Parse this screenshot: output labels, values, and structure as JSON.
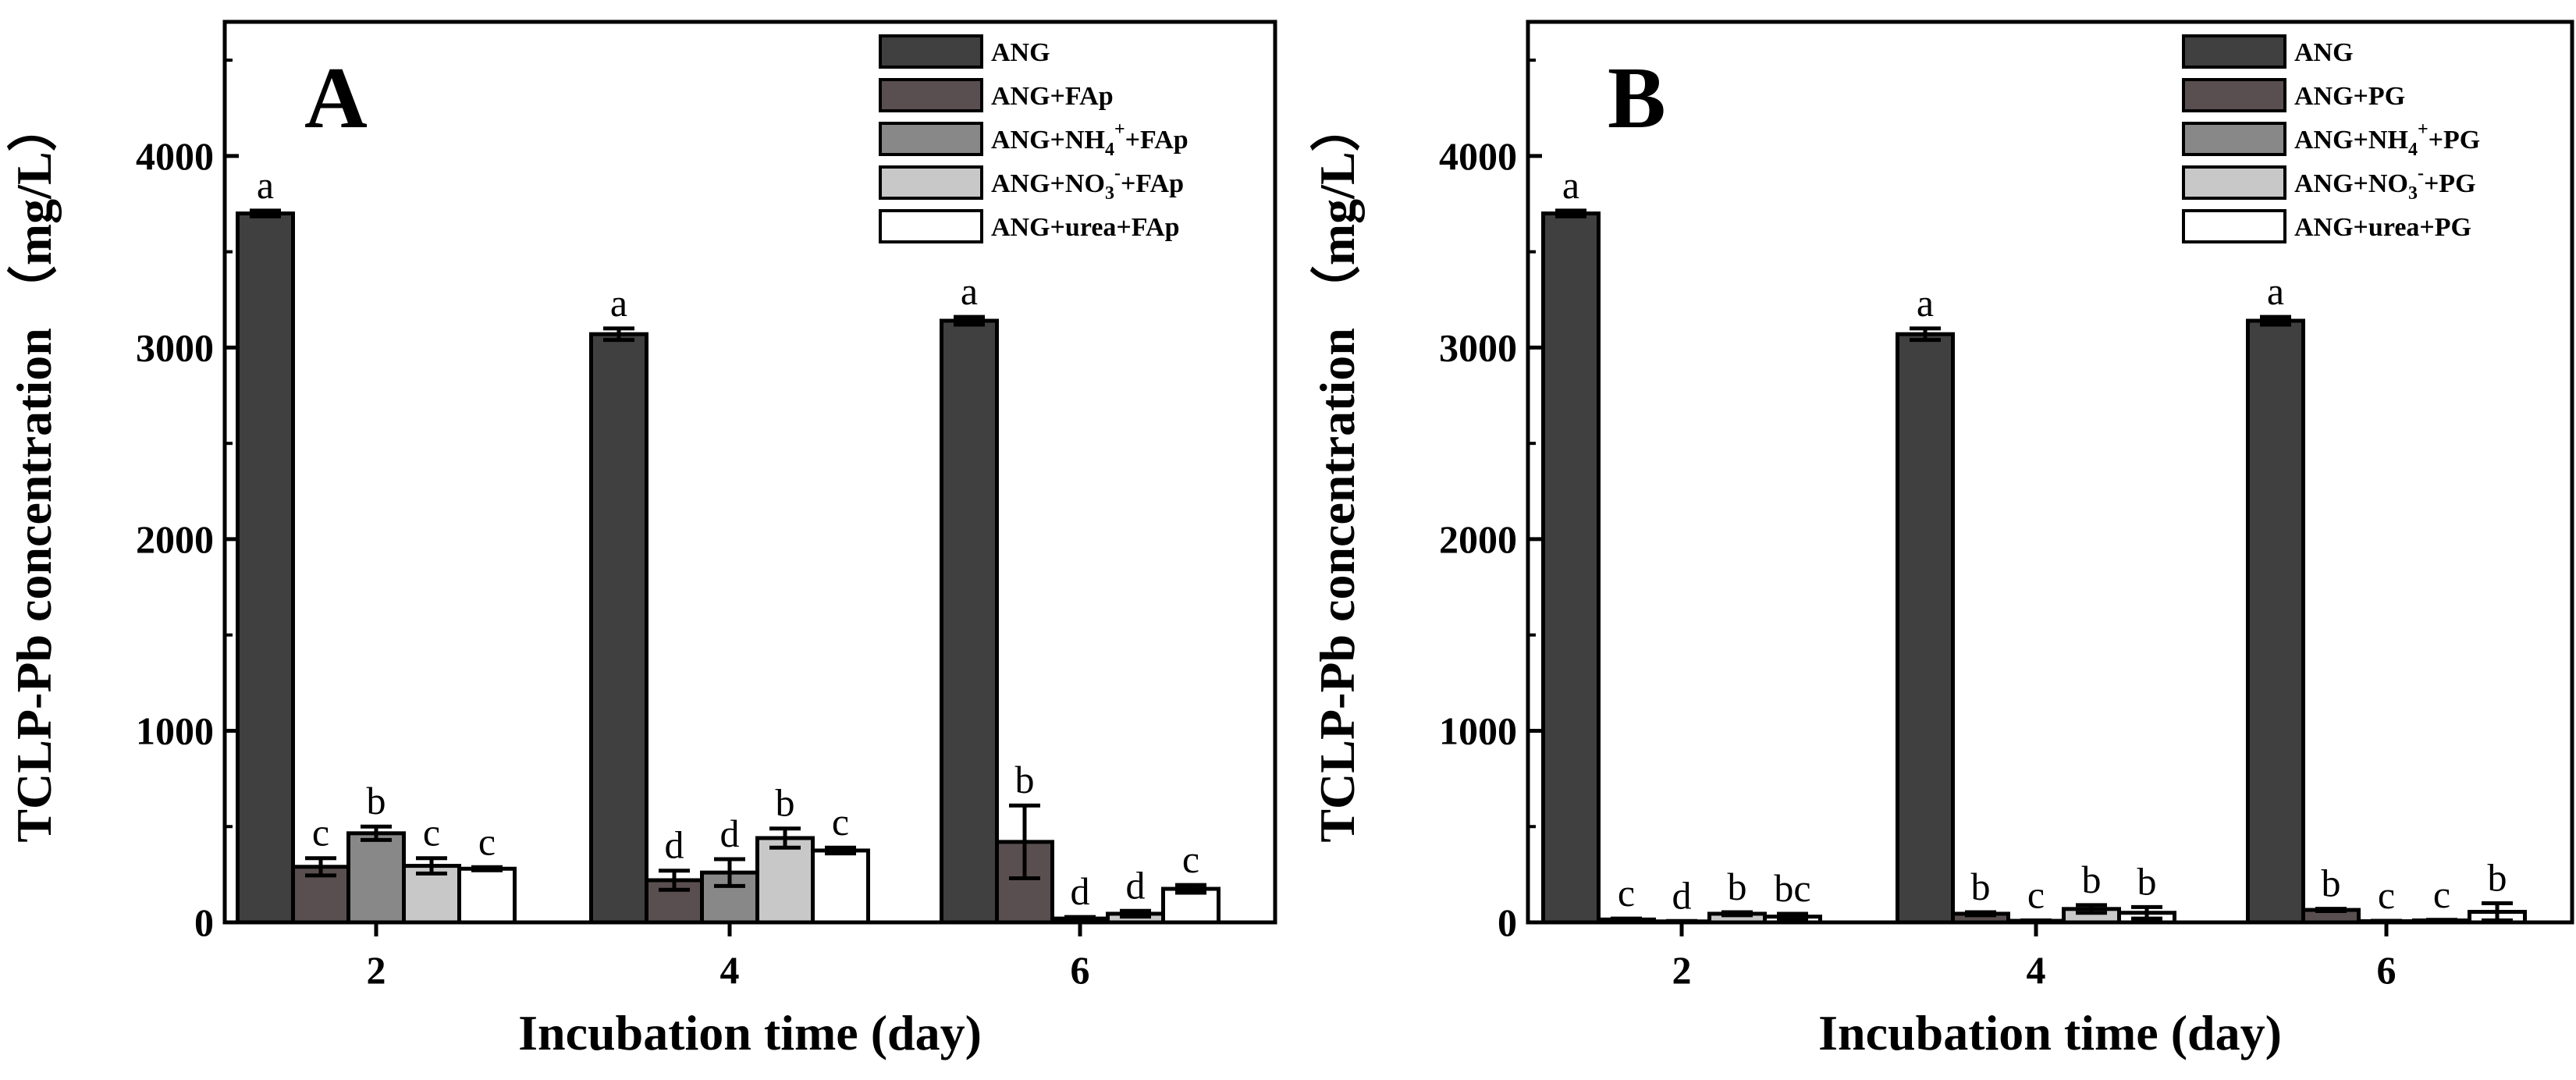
{
  "colors": {
    "ANG": "#404040",
    "ANG+X": "#5a4f50",
    "ANG+NH4+X": "#888888",
    "ANG+NO3+X": "#c8c8c8",
    "ANG+urea+X": "#ffffff"
  },
  "chart_data": [
    {
      "type": "bar",
      "panel_label": "A",
      "xlabel": "Incubation time (day)",
      "ylabel": "TCLP-Pb concentration （mg/L）",
      "ylim": [
        0,
        4700
      ],
      "yticks": [
        "0",
        "1000",
        "2000",
        "3000",
        "4000"
      ],
      "categories": [
        "2",
        "4",
        "6"
      ],
      "legend_position": "top-right",
      "series": [
        {
          "name": "ANG",
          "sub": "",
          "sup": "",
          "suffix": "",
          "values": [
            3700,
            3070,
            3140
          ],
          "errors": [
            15,
            30,
            20
          ],
          "labels": [
            "a",
            "a",
            "a"
          ]
        },
        {
          "name": "ANG+FAp",
          "sub": "",
          "sup": "",
          "suffix": "",
          "values": [
            290,
            220,
            420
          ],
          "errors": [
            45,
            50,
            190
          ],
          "labels": [
            "c",
            "d",
            "b"
          ]
        },
        {
          "name": "ANG+NH",
          "sub": "4",
          "sup": "+",
          "suffix": "+FAp",
          "values": [
            465,
            260,
            20
          ],
          "errors": [
            35,
            70,
            8
          ],
          "labels": [
            "b",
            "d",
            "d"
          ]
        },
        {
          "name": "ANG+NO",
          "sub": "3",
          "sup": "-",
          "suffix": "+FAp",
          "values": [
            295,
            440,
            45
          ],
          "errors": [
            40,
            50,
            15
          ],
          "labels": [
            "c",
            "b",
            "d"
          ]
        },
        {
          "name": "ANG+urea+FAp",
          "sub": "",
          "sup": "",
          "suffix": "",
          "values": [
            280,
            375,
            175
          ],
          "errors": [
            8,
            15,
            20
          ],
          "labels": [
            "c",
            "c",
            "c"
          ]
        }
      ]
    },
    {
      "type": "bar",
      "panel_label": "B",
      "xlabel": "Incubation time (day)",
      "ylabel": "TCLP-Pb concentration （mg/L）",
      "ylim": [
        0,
        4700
      ],
      "yticks": [
        "0",
        "1000",
        "2000",
        "3000",
        "4000"
      ],
      "categories": [
        "2",
        "4",
        "6"
      ],
      "legend_position": "top-right",
      "series": [
        {
          "name": "ANG",
          "sub": "",
          "sup": "",
          "suffix": "",
          "values": [
            3700,
            3070,
            3140
          ],
          "errors": [
            15,
            30,
            20
          ],
          "labels": [
            "a",
            "a",
            "a"
          ]
        },
        {
          "name": "ANG+PG",
          "sub": "",
          "sup": "",
          "suffix": "",
          "values": [
            15,
            45,
            65
          ],
          "errors": [
            5,
            8,
            6
          ],
          "labels": [
            "c",
            "b",
            "b"
          ]
        },
        {
          "name": "ANG+NH",
          "sub": "4",
          "sup": "+",
          "suffix": "+PG",
          "values": [
            5,
            8,
            6
          ],
          "errors": [
            2,
            2,
            2
          ],
          "labels": [
            "d",
            "c",
            "c"
          ]
        },
        {
          "name": "ANG+NO",
          "sub": "3",
          "sup": "-",
          "suffix": "+PG",
          "values": [
            45,
            70,
            10
          ],
          "errors": [
            8,
            20,
            3
          ],
          "labels": [
            "b",
            "b",
            "c"
          ]
        },
        {
          "name": "ANG+urea+PG",
          "sub": "",
          "sup": "",
          "suffix": "",
          "values": [
            30,
            50,
            55
          ],
          "errors": [
            15,
            30,
            45
          ],
          "labels": [
            "bc",
            "b",
            "b"
          ]
        }
      ]
    }
  ]
}
